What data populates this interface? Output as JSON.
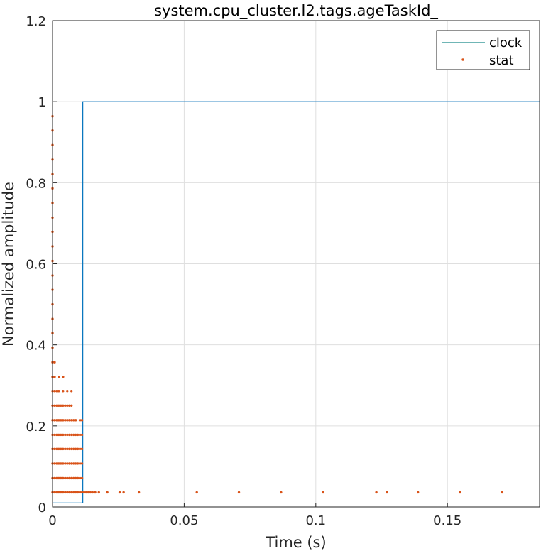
{
  "chart_data": {
    "type": "line",
    "title": "system.cpu_cluster.l2.tags.ageTaskId_",
    "xlabel": "Time (s)",
    "ylabel": "Normalized amplitude",
    "xlim": [
      0,
      0.185
    ],
    "ylim": [
      0,
      1.2
    ],
    "x_ticks": [
      0,
      0.05,
      0.1,
      0.15
    ],
    "x_tick_labels": [
      "0",
      "0.05",
      "0.1",
      "0.15"
    ],
    "y_ticks": [
      0,
      0.2,
      0.4,
      0.6,
      0.8,
      1.0,
      1.2
    ],
    "y_tick_labels": [
      "0",
      "0.2",
      "0.4",
      "0.6",
      "0.8",
      "1",
      "1.2"
    ],
    "grid": true,
    "legend_position": "top-right",
    "colors": {
      "clock": "#0072bd",
      "stat": "#d95319",
      "legend_clock_line": "#1a8a8a"
    },
    "series": [
      {
        "name": "clock",
        "style": "line",
        "x": [
          0,
          0.0115,
          0.0115,
          0.185
        ],
        "y": [
          0.01,
          0.01,
          1.0,
          1.0
        ]
      },
      {
        "name": "stat",
        "style": "dots",
        "columns": [
          {
            "x": 0.0,
            "y": [
              0.036,
              0.071,
              0.107,
              0.143,
              0.178,
              0.214,
              0.25,
              0.286,
              0.321,
              0.357,
              0.393,
              0.429,
              0.464,
              0.5,
              0.536,
              0.571,
              0.607,
              0.643,
              0.679,
              0.714,
              0.75,
              0.786,
              0.821,
              0.857,
              0.893,
              0.929,
              0.964
            ]
          },
          {
            "x": 0.0008,
            "y": [
              0.036,
              0.071,
              0.107,
              0.143,
              0.178,
              0.214,
              0.25,
              0.286,
              0.321,
              0.357
            ]
          },
          {
            "x": 0.0016,
            "y": [
              0.036,
              0.071,
              0.107,
              0.143,
              0.178,
              0.214,
              0.25,
              0.286
            ]
          },
          {
            "x": 0.0024,
            "y": [
              0.036,
              0.071,
              0.107,
              0.143,
              0.178,
              0.214,
              0.25,
              0.286,
              0.321
            ]
          },
          {
            "x": 0.0032,
            "y": [
              0.036,
              0.071,
              0.107,
              0.143,
              0.178,
              0.214,
              0.25
            ]
          },
          {
            "x": 0.004,
            "y": [
              0.036,
              0.071,
              0.107,
              0.143,
              0.178,
              0.214,
              0.25,
              0.286,
              0.321
            ]
          },
          {
            "x": 0.0048,
            "y": [
              0.036,
              0.071,
              0.107,
              0.143,
              0.178,
              0.214,
              0.25
            ]
          },
          {
            "x": 0.0056,
            "y": [
              0.036,
              0.071,
              0.107,
              0.143,
              0.178,
              0.214,
              0.25,
              0.286
            ]
          },
          {
            "x": 0.0064,
            "y": [
              0.036,
              0.071,
              0.107,
              0.143,
              0.178,
              0.214,
              0.25
            ]
          },
          {
            "x": 0.0072,
            "y": [
              0.036,
              0.071,
              0.107,
              0.143,
              0.178,
              0.214,
              0.25,
              0.286
            ]
          },
          {
            "x": 0.008,
            "y": [
              0.036,
              0.071,
              0.107,
              0.143,
              0.178,
              0.214
            ]
          },
          {
            "x": 0.0088,
            "y": [
              0.036,
              0.071,
              0.107,
              0.143,
              0.178,
              0.214
            ]
          },
          {
            "x": 0.0096,
            "y": [
              0.036,
              0.071,
              0.107,
              0.143,
              0.178
            ]
          },
          {
            "x": 0.0104,
            "y": [
              0.036,
              0.071,
              0.107,
              0.143,
              0.178,
              0.214
            ]
          },
          {
            "x": 0.0112,
            "y": [
              0.036,
              0.071,
              0.107,
              0.143,
              0.178,
              0.214
            ]
          },
          {
            "x": 0.012,
            "y": [
              0.036
            ]
          },
          {
            "x": 0.0128,
            "y": [
              0.036
            ]
          },
          {
            "x": 0.0136,
            "y": [
              0.036
            ]
          },
          {
            "x": 0.0144,
            "y": [
              0.036
            ]
          },
          {
            "x": 0.0152,
            "y": [
              0.036
            ]
          },
          {
            "x": 0.0162,
            "y": [
              0.036
            ]
          },
          {
            "x": 0.0176,
            "y": [
              0.036
            ]
          },
          {
            "x": 0.0208,
            "y": [
              0.036
            ]
          },
          {
            "x": 0.0255,
            "y": [
              0.036
            ]
          },
          {
            "x": 0.027,
            "y": [
              0.036
            ]
          },
          {
            "x": 0.0328,
            "y": [
              0.036
            ]
          },
          {
            "x": 0.0548,
            "y": [
              0.036
            ]
          },
          {
            "x": 0.0708,
            "y": [
              0.036
            ]
          },
          {
            "x": 0.0868,
            "y": [
              0.036
            ]
          },
          {
            "x": 0.1028,
            "y": [
              0.036
            ]
          },
          {
            "x": 0.123,
            "y": [
              0.036
            ]
          },
          {
            "x": 0.127,
            "y": [
              0.036
            ]
          },
          {
            "x": 0.1388,
            "y": [
              0.036
            ]
          },
          {
            "x": 0.1548,
            "y": [
              0.036
            ]
          },
          {
            "x": 0.1708,
            "y": [
              0.036
            ]
          }
        ]
      }
    ]
  }
}
